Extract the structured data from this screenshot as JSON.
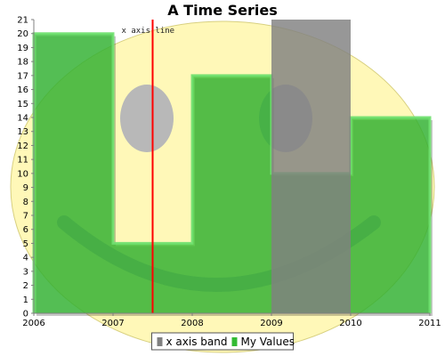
{
  "chart_data": {
    "type": "bar",
    "title": "A Time Series",
    "xlabel": "",
    "ylabel": "",
    "x_ticks": [
      "2006",
      "2007",
      "2008",
      "2009",
      "2010",
      "2011"
    ],
    "x_range": [
      2006,
      2011
    ],
    "ylim": [
      0,
      21
    ],
    "y_ticks": [
      "0",
      "1",
      "2",
      "3",
      "4",
      "5",
      "6",
      "7",
      "8",
      "9",
      "10",
      "11",
      "12",
      "13",
      "14",
      "15",
      "16",
      "17",
      "18",
      "19",
      "20",
      "21"
    ],
    "grid": false,
    "series": [
      {
        "name": "My Values",
        "color": "#33bb33",
        "step": true,
        "points": [
          {
            "x": 2006,
            "y": 20
          },
          {
            "x": 2007,
            "y": 5
          },
          {
            "x": 2008,
            "y": 17
          },
          {
            "x": 2009,
            "y": 10
          },
          {
            "x": 2010,
            "y": 14
          }
        ],
        "x_end": 2011
      }
    ],
    "band": {
      "name": "x axis band",
      "from": 2009,
      "to": 2010,
      "color": "#808080"
    },
    "x_line": {
      "label": "x axis line",
      "x": 2007.5,
      "color": "#ff0000"
    },
    "legend": {
      "position": "bottom",
      "items": [
        "x axis band",
        "My Values"
      ]
    },
    "background_image": "smiley-face"
  }
}
